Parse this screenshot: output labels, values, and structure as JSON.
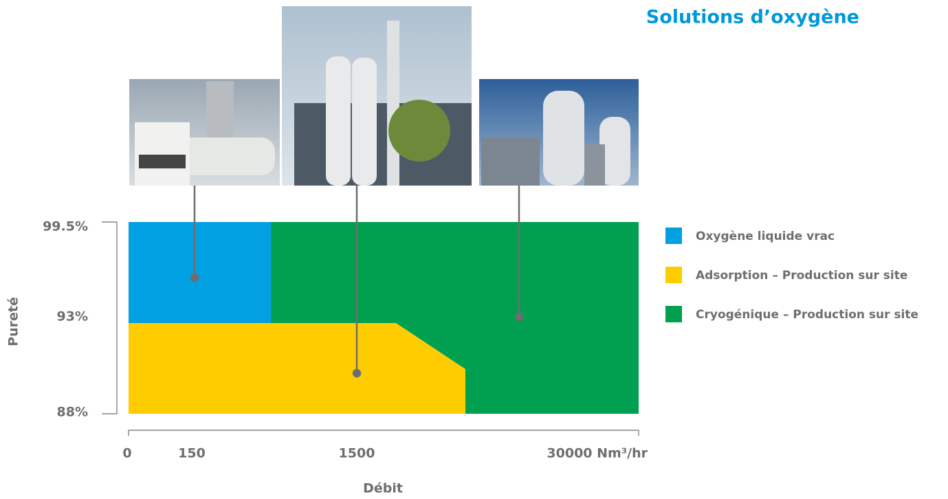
{
  "header": {
    "title": "Solutions d’oxygène"
  },
  "y_axis": {
    "title": "Pureté",
    "ticks": [
      "99.5%",
      "93%",
      "88%"
    ]
  },
  "x_axis": {
    "title": "Débit",
    "ticks": [
      "0",
      "150",
      "1500",
      "30000 Nm³/hr"
    ]
  },
  "legend": [
    {
      "label": "Oxygène liquide vrac",
      "color": "#00a0e3"
    },
    {
      "label": "Adsorption – Production sur site",
      "color": "#ffcc00"
    },
    {
      "label": "Cryogénique – Production sur site",
      "color": "#00a050"
    }
  ]
}
